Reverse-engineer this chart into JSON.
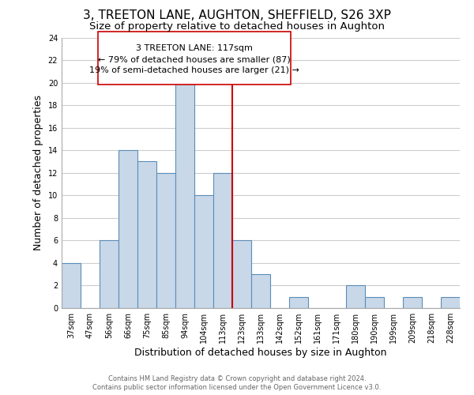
{
  "title": "3, TREETON LANE, AUGHTON, SHEFFIELD, S26 3XP",
  "subtitle": "Size of property relative to detached houses in Aughton",
  "xlabel": "Distribution of detached houses by size in Aughton",
  "ylabel": "Number of detached properties",
  "bar_labels": [
    "37sqm",
    "47sqm",
    "56sqm",
    "66sqm",
    "75sqm",
    "85sqm",
    "94sqm",
    "104sqm",
    "113sqm",
    "123sqm",
    "133sqm",
    "142sqm",
    "152sqm",
    "161sqm",
    "171sqm",
    "180sqm",
    "190sqm",
    "199sqm",
    "209sqm",
    "218sqm",
    "228sqm"
  ],
  "bar_heights": [
    4,
    0,
    6,
    14,
    13,
    12,
    20,
    10,
    12,
    6,
    3,
    0,
    1,
    0,
    0,
    2,
    1,
    0,
    1,
    0,
    1
  ],
  "bar_color": "#c8d8e8",
  "bar_edge_color": "#5b8db8",
  "vline_x_index": 8,
  "vline_color": "#cc0000",
  "annotation_line1": "3 TREETON LANE: 117sqm",
  "annotation_line2": "← 79% of detached houses are smaller (87)",
  "annotation_line3": "19% of semi-detached houses are larger (21) →",
  "annotation_box_edge_color": "#cc0000",
  "annotation_box_face_color": "#ffffff",
  "ylim": [
    0,
    24
  ],
  "yticks": [
    0,
    2,
    4,
    6,
    8,
    10,
    12,
    14,
    16,
    18,
    20,
    22,
    24
  ],
  "grid_color": "#cccccc",
  "footer_line1": "Contains HM Land Registry data © Crown copyright and database right 2024.",
  "footer_line2": "Contains public sector information licensed under the Open Government Licence v3.0.",
  "title_fontsize": 11,
  "subtitle_fontsize": 9.5,
  "tick_fontsize": 7,
  "label_fontsize": 9,
  "annotation_fontsize": 8,
  "footer_fontsize": 6
}
